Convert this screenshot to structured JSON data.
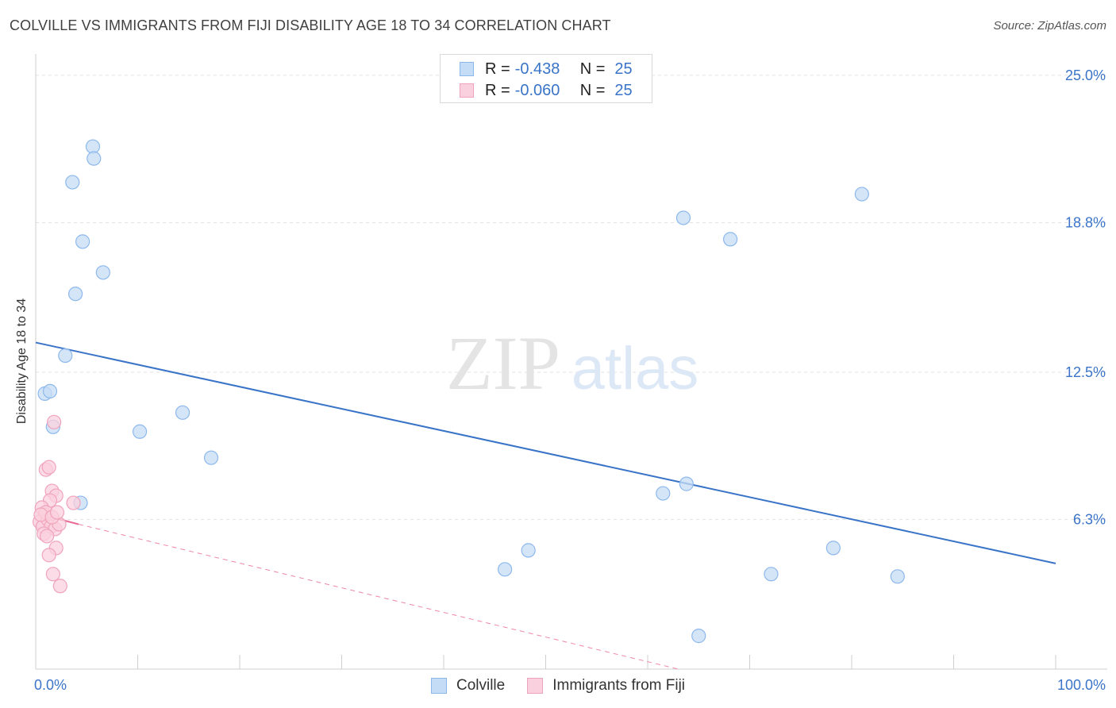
{
  "header": {
    "title": "COLVILLE VS IMMIGRANTS FROM FIJI DISABILITY AGE 18 TO 34 CORRELATION CHART",
    "source": "Source: ZipAtlas.com"
  },
  "watermark": {
    "zip": "ZIP",
    "atlas": "atlas"
  },
  "stats": [
    {
      "r_label": "R =",
      "r_value": "-0.438",
      "n_label": "N =",
      "n_value": "25",
      "color": "#8db8ec",
      "fill": "#c5dcf6"
    },
    {
      "r_label": "R =",
      "r_value": "-0.060",
      "n_label": "N =",
      "n_value": "25",
      "color": "#f0a3bc",
      "fill": "#fbd0de"
    }
  ],
  "legend": [
    {
      "label": "Colville",
      "color": "#8db8ec",
      "fill": "#c5dcf6"
    },
    {
      "label": "Immigrants from Fiji",
      "color": "#f0a3bc",
      "fill": "#fbd0de"
    }
  ],
  "chart_data": {
    "type": "scatter",
    "title": "COLVILLE VS IMMIGRANTS FROM FIJI DISABILITY AGE 18 TO 34 CORRELATION CHART",
    "xlabel": "",
    "ylabel": "Disability Age 18 to 34",
    "xlim": [
      0,
      100
    ],
    "ylim": [
      0,
      25.9
    ],
    "x_tick_labels": [
      {
        "value": 0,
        "label": "0.0%"
      },
      {
        "value": 100,
        "label": "100.0%"
      }
    ],
    "y_tick_labels": [
      {
        "value": 6.3,
        "label": "6.3%"
      },
      {
        "value": 12.5,
        "label": "12.5%"
      },
      {
        "value": 18.8,
        "label": "18.8%"
      },
      {
        "value": 25.0,
        "label": "25.0%"
      }
    ],
    "x_minor_ticks": [
      10,
      20,
      30,
      40,
      50,
      60,
      70,
      80,
      90,
      100
    ],
    "grid": true,
    "legend_position": "bottom",
    "series": [
      {
        "name": "Colville",
        "color": "#3a74c8",
        "marker_fill": "#c5dcf6",
        "marker_stroke": "#8db8ec",
        "points": [
          [
            5.6,
            22.0
          ],
          [
            5.7,
            21.5
          ],
          [
            3.6,
            20.5
          ],
          [
            4.6,
            18.0
          ],
          [
            6.6,
            16.7
          ],
          [
            3.9,
            15.8
          ],
          [
            2.9,
            13.2
          ],
          [
            0.9,
            11.6
          ],
          [
            1.4,
            11.7
          ],
          [
            1.7,
            10.2
          ],
          [
            10.2,
            10.0
          ],
          [
            14.4,
            10.8
          ],
          [
            17.2,
            8.9
          ],
          [
            4.4,
            7.0
          ],
          [
            46.0,
            4.2
          ],
          [
            48.3,
            5.0
          ],
          [
            61.5,
            7.4
          ],
          [
            63.8,
            7.8
          ],
          [
            63.5,
            19.0
          ],
          [
            68.1,
            18.1
          ],
          [
            72.1,
            4.0
          ],
          [
            78.2,
            5.1
          ],
          [
            84.5,
            3.9
          ],
          [
            65.0,
            1.4
          ],
          [
            81.0,
            20.0
          ]
        ],
        "trendline": {
          "x": [
            0,
            100
          ],
          "y": [
            13.75,
            4.45
          ],
          "style": "solid"
        }
      },
      {
        "name": "Immigrants from Fiji",
        "color": "#e86b93",
        "marker_fill": "#fbd0de",
        "marker_stroke": "#f0a3bc",
        "points": [
          [
            1.8,
            10.4
          ],
          [
            1.0,
            8.4
          ],
          [
            1.3,
            8.5
          ],
          [
            1.6,
            7.5
          ],
          [
            2.0,
            7.3
          ],
          [
            3.7,
            7.0
          ],
          [
            1.4,
            7.1
          ],
          [
            0.6,
            6.8
          ],
          [
            0.9,
            6.5
          ],
          [
            0.4,
            6.2
          ],
          [
            0.7,
            6.0
          ],
          [
            1.2,
            6.3
          ],
          [
            1.5,
            6.0
          ],
          [
            1.9,
            5.9
          ],
          [
            2.3,
            6.1
          ],
          [
            1.0,
            6.6
          ],
          [
            0.8,
            5.7
          ],
          [
            1.1,
            5.6
          ],
          [
            2.0,
            5.1
          ],
          [
            1.3,
            4.8
          ],
          [
            1.7,
            4.0
          ],
          [
            2.4,
            3.5
          ],
          [
            0.5,
            6.5
          ],
          [
            1.6,
            6.4
          ],
          [
            2.1,
            6.6
          ]
        ],
        "trendline_solid": {
          "x": [
            0.2,
            4.2
          ],
          "y": [
            6.55,
            6.1
          ]
        },
        "trendline_dashed": {
          "x": [
            4.2,
            63.0
          ],
          "y": [
            6.1,
            0.0
          ]
        }
      }
    ]
  }
}
